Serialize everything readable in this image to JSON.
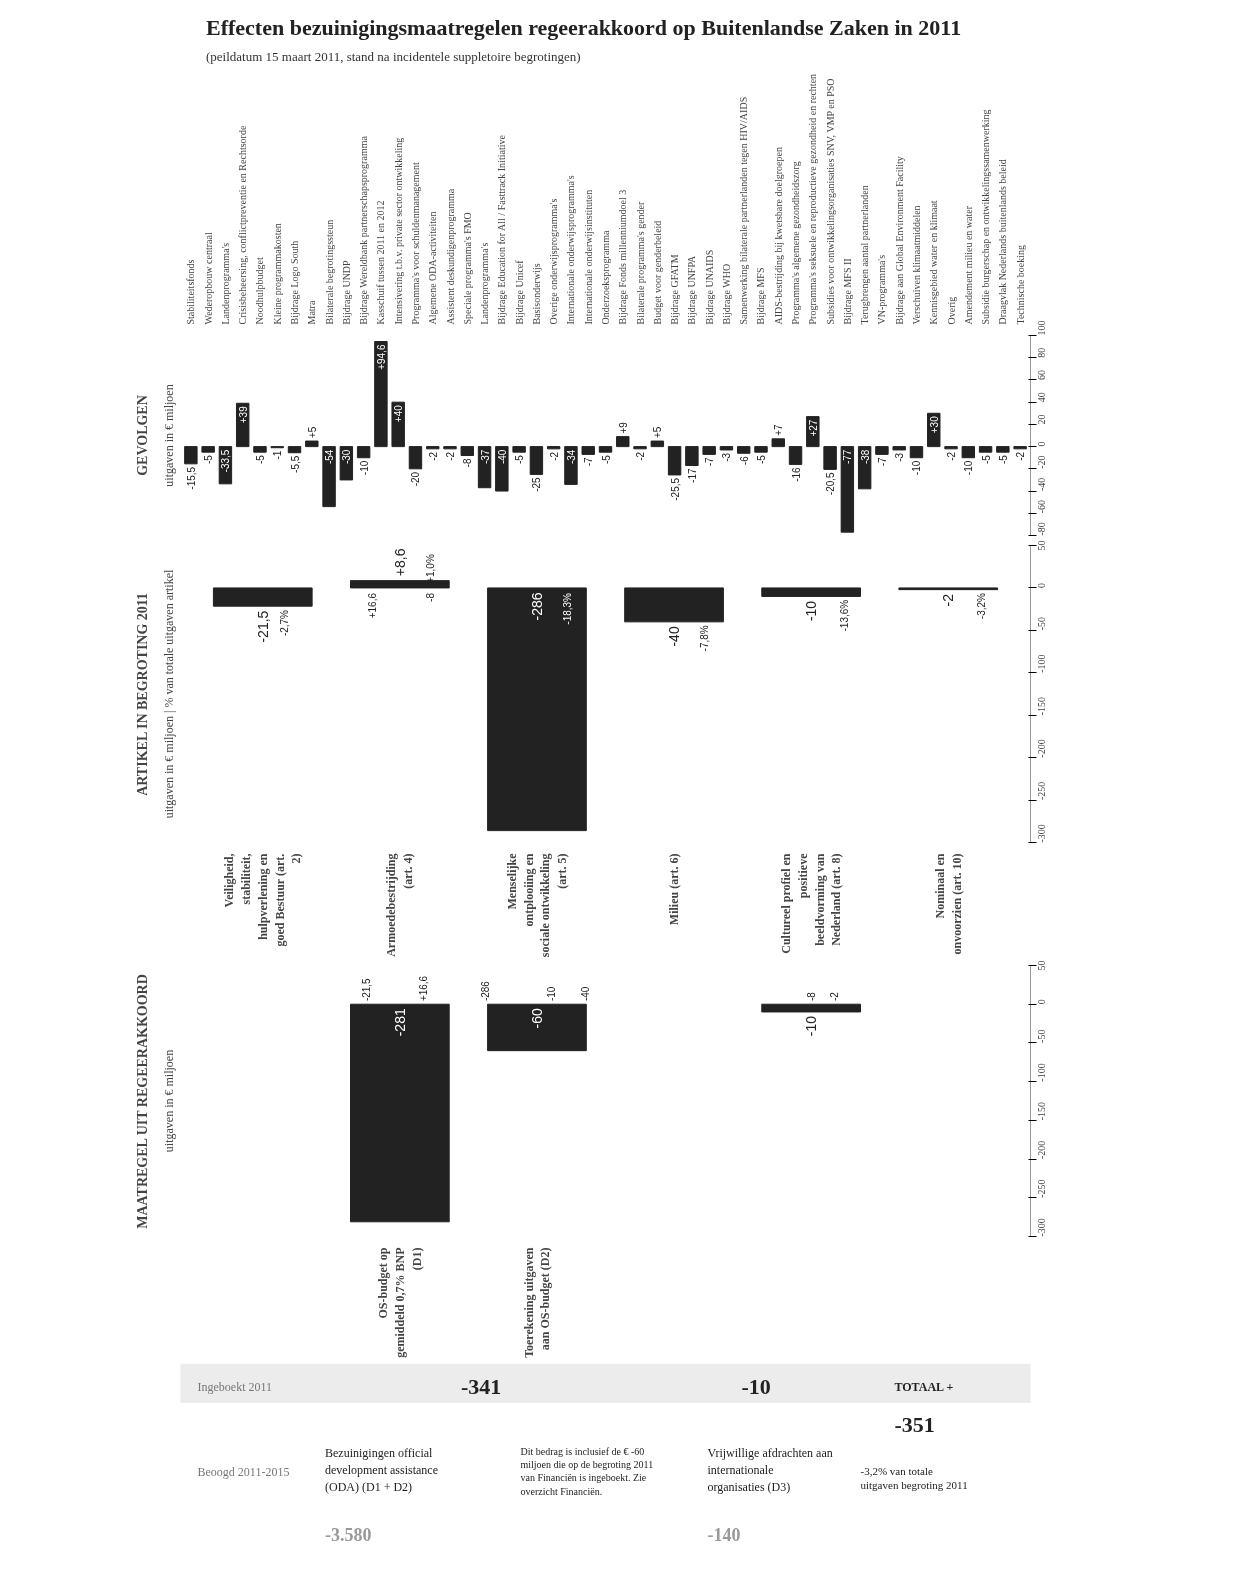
{
  "chart_data": [
    {
      "type": "other",
      "title": "Effecten bezuinigingsmaatregelen regeerakkoord op Buitenlandse Zaken in 2011",
      "subtitle": "(peildatum 15 maart 2011, stand na incidentele suppletoire begrotingen)"
    },
    {
      "type": "bar",
      "title": "GEVOLGEN",
      "subtitle": "uitgaven in € miljoen",
      "color": "#222222",
      "categories": [
        "Stabiliteitsfonds",
        "Wederopbouw centraal",
        "Landenprogramma's",
        "Crisisbeheersing, conflictpreventie en Rechtsorde",
        "Noodhulpbudget",
        "Kleine programmakosten",
        "Bijdrage Logo South",
        "Matra",
        "Bilaterale begrotingssteun",
        "Bijdrage UNDP",
        "Bijdrage Wereldbank partnerschapsprogramma",
        "Kasschuif tussen 2011 en 2012",
        "Intensivering t.b.v. private sector ontwikkeling",
        "Programma's voor schuldenmanagement",
        "Algemene ODA-activiteiten",
        "Assistent deskundigenprogramma",
        "Speciale programma's FMO",
        "Landenprogramma's",
        "Bijdrage Education for All / Fasttrack Initiative",
        "Bijdrage Unicef",
        "Basisonderwijs",
        "Overige onderwijsprogramma's",
        "Internationale onderwijsprogramma's",
        "Internationale onderwijsinstituten",
        "Onderzoeksprogramma",
        "Bijdrage Fonds millenniumdoel 3",
        "Bilaterale programma's gender",
        "Budget voor genderbeleid",
        "Bijdrage GFATM",
        "Bijdrage UNFPA",
        "Bijdrage UNAIDS",
        "Bijdrage WHO",
        "Samenwerking bilaterale partnerlanden tegen HIV/AIDS",
        "Bijdrage MFS",
        "AIDS-bestrijding bij kwetsbare doelgroepen",
        "Programma's algemene gezondheidszorg",
        "Programma's seksuele en reproductieve gezondheid en rechten",
        "Subsidies voor ontwikkelingsorganisaties SNV, VMP en PSO",
        "Bijdrage MFS II",
        "Terugbrengen aantal partnerlanden",
        "VN-programma's",
        "Bijdrage aan Global Environment Facility",
        "Verschuiven klimaatmiddelen",
        "Kennisgebied water en klimaat",
        "Overig",
        "Amendement milieu en water",
        "Subsidie burgerschap en ontwikkelingssamenwerking",
        "Draagvlak Nederlands buitenlands beleid",
        "Technische boeking"
      ],
      "values": [
        -15.5,
        -5,
        -33.5,
        39,
        -5,
        -1,
        -5.5,
        5,
        -54,
        -30,
        -10,
        94.6,
        40,
        -20,
        -2,
        -2,
        -8,
        -37,
        -40,
        -5,
        -25,
        -2,
        -34,
        -7,
        -5,
        9,
        -2,
        5,
        -25.5,
        -17,
        -7,
        -3,
        -6,
        -5,
        7,
        -16,
        27,
        -20.5,
        -77,
        -38,
        -7,
        -3,
        -10,
        30,
        -2,
        -10,
        -5,
        -5,
        -2
      ],
      "value_labels": [
        "-15,5",
        "-5",
        "-33,5",
        "+39",
        "-5",
        "-1",
        "-5,5",
        "+5",
        "-54",
        "-30",
        "-10",
        "+94,6",
        "+40",
        "-20",
        "-2",
        "-2",
        "-8",
        "-37",
        "-40",
        "-5",
        "-25",
        "-2",
        "-34",
        "-7",
        "-5",
        "+9",
        "-2",
        "+5",
        "-25,5",
        "-17",
        "-7",
        "-3",
        "-6",
        "-5",
        "+7",
        "-16",
        "+27",
        "-20,5",
        "-77",
        "-38",
        "-7",
        "-3",
        "-10",
        "+30",
        "-2",
        "-10",
        "-5",
        "-5",
        "-2"
      ],
      "ylim": [
        -80,
        100
      ],
      "yticks": [
        -80,
        -60,
        -40,
        -20,
        0,
        20,
        40,
        60,
        80,
        100
      ]
    },
    {
      "type": "bar",
      "title": "ARTIKEL IN BEGROTING 2011",
      "subtitle": "uitgaven in € miljoen | % van totale uitgaven artikel",
      "color": "#222222",
      "categories": [
        "Veiligheid, stabiliteit, hulpverlening en goed Bestuur (art. 2)",
        "Armoedebestrijding (art. 4)",
        "Menselijke ontplooiing en sociale ontwikkeling (art. 5)",
        "Milieu (art. 6)",
        "Cultureel profiel en positieve beeldvorming van Nederland (art. 8)",
        "Nominaal en onvoorzien (art. 10)"
      ],
      "values": [
        -21.5,
        8.6,
        -286,
        -40,
        -10,
        -2
      ],
      "value_labels": [
        "-21,5",
        "+8,6",
        "-286",
        "-40",
        "-10",
        "-2"
      ],
      "annotations": [
        "-2,7%",
        "+16,6",
        "-8",
        "+1,0%",
        "-18,3%",
        "-7,8%",
        "-13,6%",
        "-3,2%"
      ],
      "ylim": [
        -300,
        50
      ],
      "yticks": [
        -300,
        -250,
        -200,
        -150,
        -100,
        -50,
        0,
        50
      ]
    },
    {
      "type": "bar",
      "title": "MAATREGEL UIT REGEERAKKOORD",
      "subtitle": "uitgaven in € miljoen",
      "color": "#222222",
      "categories": [
        null,
        "OS-budget op gemiddeld 0,7% BNP (D1)",
        "Toerekening uitgaven aan OS-budget (D2)",
        null,
        null,
        null
      ],
      "values": [
        null,
        -281,
        -60,
        null,
        -10,
        null
      ],
      "data_labels": true,
      "annotations": [
        "-21,5",
        "+16,6",
        "-286",
        "-10",
        "-40",
        "-8",
        "-2"
      ],
      "ylim": [
        -300,
        50
      ],
      "yticks": [
        -300,
        -250,
        -200,
        -150,
        -100,
        -50,
        0,
        50
      ]
    },
    {
      "type": "other",
      "annotations": [
        "Ingeboekt 2011",
        "Beoogd 2011-2015",
        "-341",
        "-10",
        "Bezuinigingen official development assistance (ODA) (D1 + D2)",
        "-3.580",
        "Dit bedrag is inclusief de € -60 miljoen die op de begroting 2011 van Financiën is ingeboekt. Zie overzicht Financiën.",
        "Vrijwillige afdrachten aan internationale organisaties (D3)",
        "-140",
        "TOTAAL +",
        "-351",
        "-3,2% van totale uitgaven begroting 2011"
      ]
    }
  ]
}
